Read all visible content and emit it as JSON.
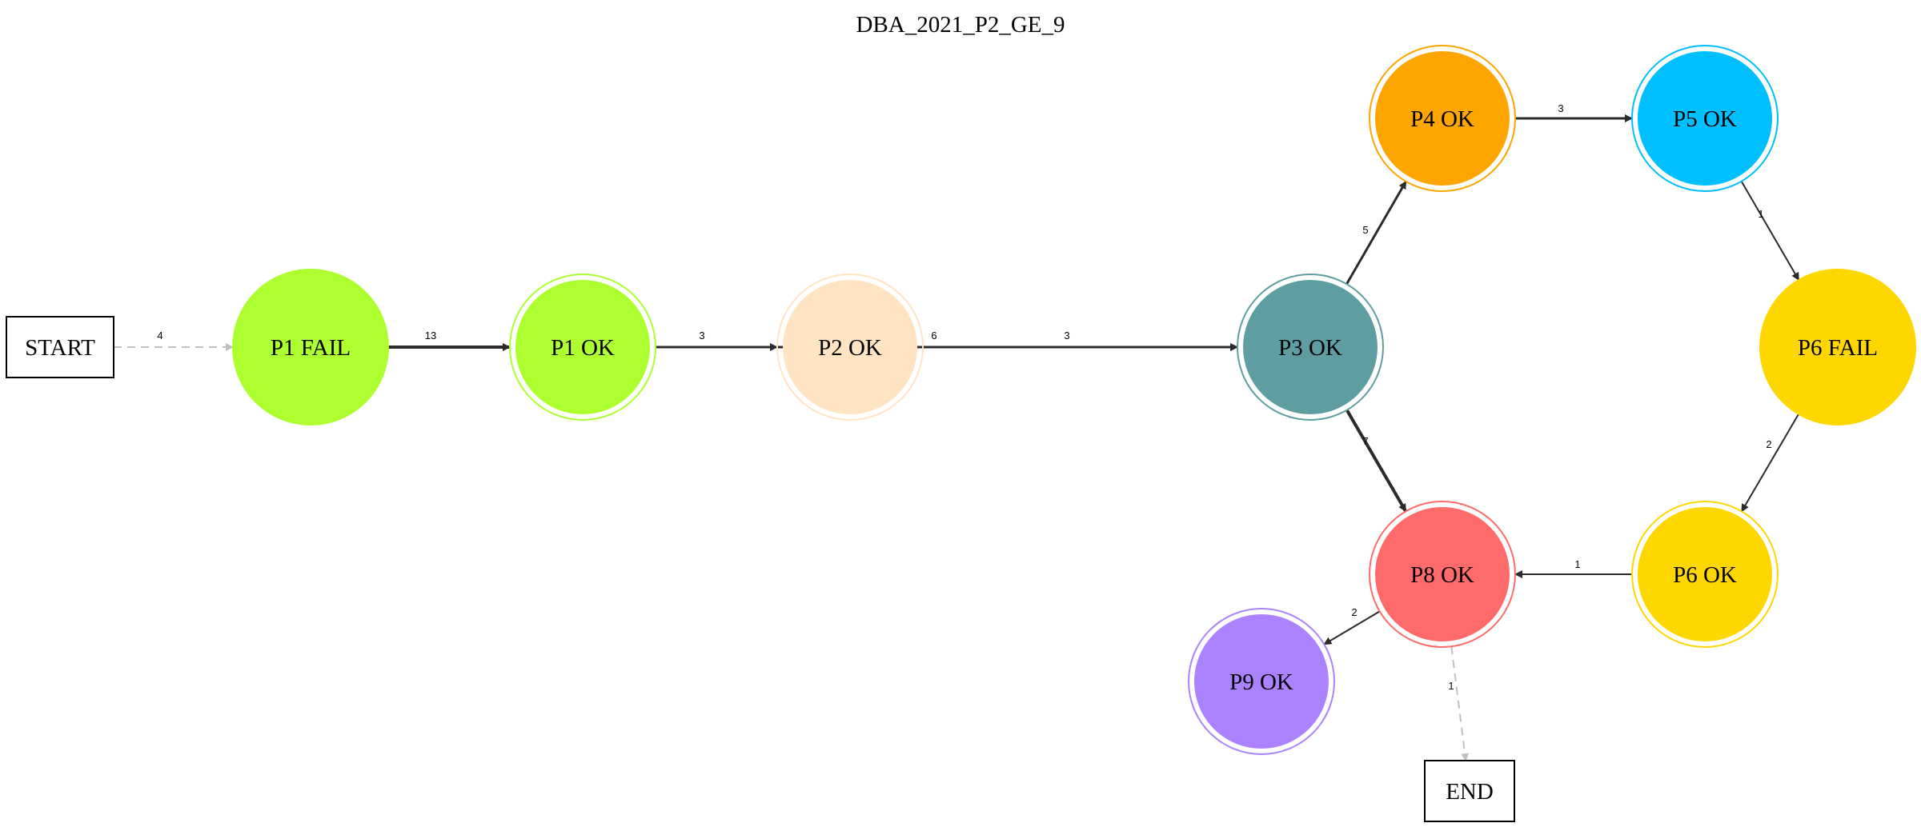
{
  "title": "DBA_2021_P2_GE_9",
  "nodes": [
    {
      "id": "start",
      "label": "START",
      "shape": "box"
    },
    {
      "id": "p1fail",
      "label": "P1 FAIL",
      "shape": "circle",
      "fill": "#adff2f",
      "stroke": "#adff2f"
    },
    {
      "id": "p1ok",
      "label": "P1 OK",
      "shape": "doublecircle",
      "fill": "#adff2f",
      "stroke": "#adff2f"
    },
    {
      "id": "p2ok",
      "label": "P2 OK",
      "shape": "doublecircle",
      "fill": "#ffe4c4",
      "stroke": "#ffe4c4"
    },
    {
      "id": "p3ok",
      "label": "P3 OK",
      "shape": "doublecircle",
      "fill": "#5f9ea0",
      "stroke": "#5f9ea0"
    },
    {
      "id": "p4ok",
      "label": "P4 OK",
      "shape": "doublecircle",
      "fill": "#ffa500",
      "stroke": "#ffa500"
    },
    {
      "id": "p5ok",
      "label": "P5 OK",
      "shape": "doublecircle",
      "fill": "#00bfff",
      "stroke": "#00bfff"
    },
    {
      "id": "p6fail",
      "label": "P6 FAIL",
      "shape": "circle",
      "fill": "#ffd700",
      "stroke": "#ffd700"
    },
    {
      "id": "p6ok",
      "label": "P6 OK",
      "shape": "doublecircle",
      "fill": "#ffd700",
      "stroke": "#ffd700"
    },
    {
      "id": "p8ok",
      "label": "P8 OK",
      "shape": "doublecircle",
      "fill": "#ff6a6a",
      "stroke": "#ff6a6a"
    },
    {
      "id": "p9ok",
      "label": "P9 OK",
      "shape": "doublecircle",
      "fill": "#ab82ff",
      "stroke": "#ab82ff"
    },
    {
      "id": "end",
      "label": "END",
      "shape": "box"
    }
  ],
  "edges": [
    {
      "from": "start",
      "to": "p1fail",
      "label": "4",
      "style": "dashed",
      "color": "#c0c0c0"
    },
    {
      "from": "p1fail",
      "to": "p1ok",
      "label": "13",
      "style": "solid",
      "color": "#2b2b2b"
    },
    {
      "from": "p1ok",
      "to": "p2ok",
      "label": "3",
      "style": "solid",
      "color": "#2b2b2b"
    },
    {
      "from": "p1ok",
      "to": "p3ok",
      "label": "6",
      "style": "solid",
      "color": "#2b2b2b"
    },
    {
      "from": "p2ok",
      "to": "p3ok",
      "label": "3",
      "style": "solid",
      "color": "#2b2b2b"
    },
    {
      "from": "p3ok",
      "to": "p4ok",
      "label": "5",
      "style": "solid",
      "color": "#2b2b2b"
    },
    {
      "from": "p3ok",
      "to": "p8ok",
      "label": "7",
      "style": "solid",
      "color": "#2b2b2b"
    },
    {
      "from": "p4ok",
      "to": "p5ok",
      "label": "3",
      "style": "solid",
      "color": "#2b2b2b"
    },
    {
      "from": "p5ok",
      "to": "p6fail",
      "label": "1",
      "style": "solid",
      "color": "#2b2b2b"
    },
    {
      "from": "p6fail",
      "to": "p6ok",
      "label": "2",
      "style": "solid",
      "color": "#2b2b2b"
    },
    {
      "from": "p6ok",
      "to": "p8ok",
      "label": "1",
      "style": "solid",
      "color": "#2b2b2b"
    },
    {
      "from": "p8ok",
      "to": "p9ok",
      "label": "2",
      "style": "solid",
      "color": "#2b2b2b"
    },
    {
      "from": "p8ok",
      "to": "end",
      "label": "1",
      "style": "dashed",
      "color": "#c0c0c0"
    }
  ]
}
